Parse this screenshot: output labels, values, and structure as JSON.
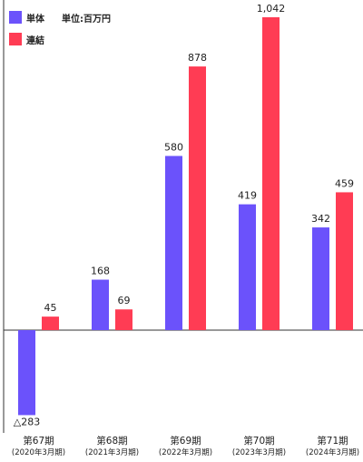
{
  "legend": {
    "single_label": "単体",
    "consolidated_label": "連結",
    "unit_label": "単位:百万円"
  },
  "colors": {
    "single": "#6b52fb",
    "consolidated": "#ff3c54",
    "axis": "#333333",
    "text": "#222222"
  },
  "chart_data": {
    "type": "bar",
    "categories": [
      "第67期",
      "第68期",
      "第69期",
      "第70期",
      "第71期"
    ],
    "category_subs": [
      "(2020年3月期)",
      "(2021年3月期)",
      "(2022年3月期)",
      "(2023年3月期)",
      "(2024年3月期)"
    ],
    "series": [
      {
        "name": "単体",
        "values": [
          -283,
          168,
          580,
          419,
          342
        ],
        "labels": [
          "△283",
          "168",
          "580",
          "419",
          "342"
        ]
      },
      {
        "name": "連結",
        "values": [
          45,
          69,
          878,
          1042,
          459
        ],
        "labels": [
          "45",
          "69",
          "878",
          "1,042",
          "459"
        ]
      }
    ],
    "ylim": [
      -283,
      1042
    ],
    "grid": false,
    "legend_position": "top-left"
  }
}
